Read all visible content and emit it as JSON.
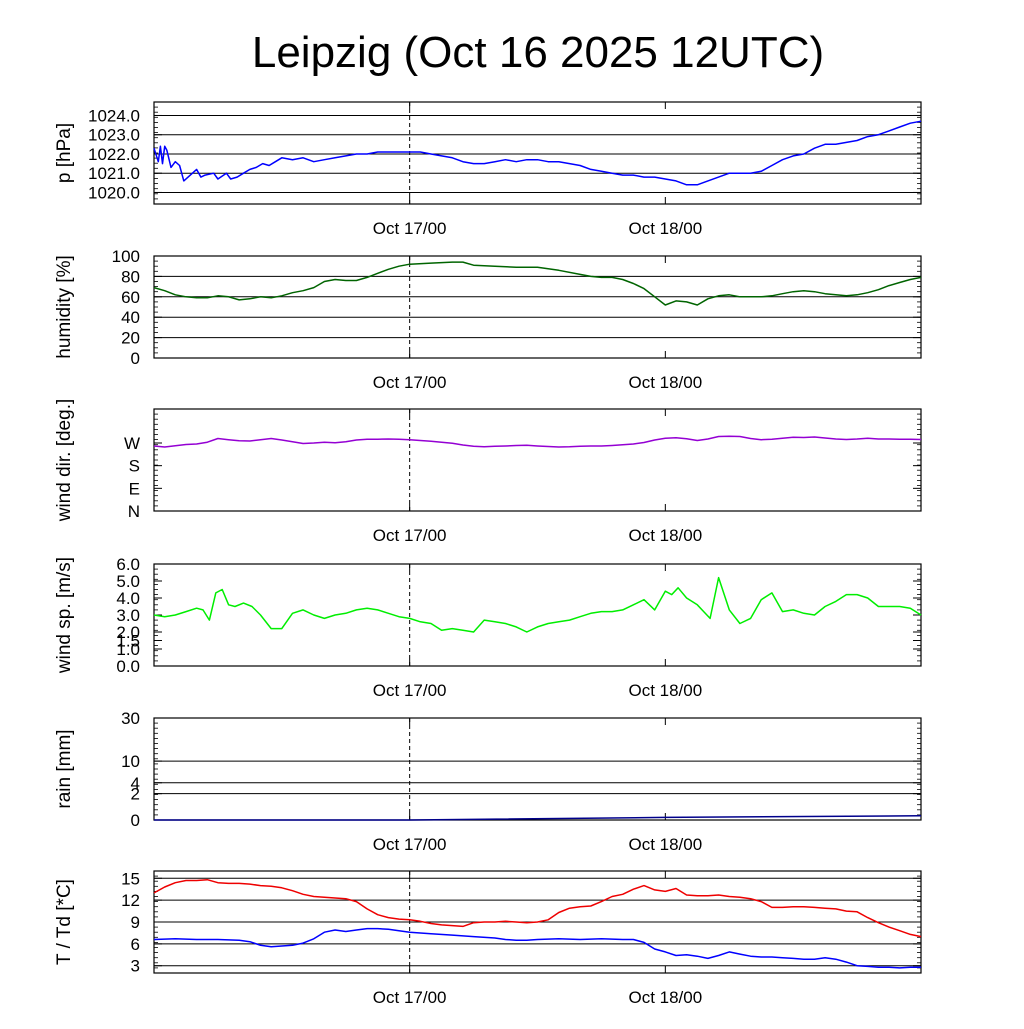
{
  "title": "Leipzig (Oct 16 2025 12UTC)",
  "chart_data": [
    {
      "id": "pressure",
      "type": "line",
      "ylabel": "p [hPa]",
      "ylim": [
        1019.4,
        1024.7
      ],
      "yticks": [
        1020.0,
        1021.0,
        1022.0,
        1023.0,
        1024.0
      ],
      "ytick_labels": [
        "1020.0",
        "1021.0",
        "1022.0",
        "1023.0",
        "1024.0"
      ],
      "xlim": [
        0,
        36
      ],
      "xticks": [
        12,
        24
      ],
      "xtick_labels": [
        "Oct 17/00",
        "Oct 18/00"
      ],
      "grid": true,
      "vline_x": 12,
      "series": [
        {
          "color": "#0000ff",
          "x": [
            0,
            0.2,
            0.3,
            0.4,
            0.5,
            0.6,
            0.8,
            1.0,
            1.2,
            1.4,
            1.6,
            2.0,
            2.2,
            2.4,
            2.8,
            3.0,
            3.4,
            3.6,
            3.9,
            4.2,
            4.5,
            4.8,
            5.1,
            5.4,
            5.7,
            6.0,
            6.5,
            7.0,
            7.5,
            8.0,
            8.5,
            9.0,
            9.5,
            10.0,
            10.5,
            11.0,
            11.5,
            12.0,
            12.5,
            13.0,
            13.5,
            14.0,
            14.5,
            15.0,
            15.5,
            16.0,
            16.5,
            17.0,
            17.5,
            18.0,
            18.5,
            19.0,
            19.5,
            20.0,
            20.5,
            21.0,
            21.5,
            22.0,
            22.5,
            23.0,
            23.5,
            24.0,
            24.5,
            25.0,
            25.5,
            26.0,
            26.5,
            27.0,
            27.5,
            28.0,
            28.5,
            29.0,
            29.5,
            30.0,
            30.5,
            31.0,
            31.5,
            32.0,
            32.5,
            33.0,
            33.5,
            34.0,
            34.5,
            35.0,
            35.5,
            36.0
          ],
          "y": [
            1022.3,
            1021.6,
            1022.4,
            1021.5,
            1022.4,
            1022.2,
            1021.3,
            1021.6,
            1021.4,
            1020.6,
            1020.8,
            1021.2,
            1020.8,
            1020.9,
            1021.0,
            1020.7,
            1021.0,
            1020.7,
            1020.8,
            1021.0,
            1021.2,
            1021.3,
            1021.5,
            1021.4,
            1021.6,
            1021.8,
            1021.7,
            1021.8,
            1021.6,
            1021.7,
            1021.8,
            1021.9,
            1022.0,
            1022.0,
            1022.1,
            1022.1,
            1022.1,
            1022.1,
            1022.1,
            1022.0,
            1021.9,
            1021.8,
            1021.6,
            1021.5,
            1021.5,
            1021.6,
            1021.7,
            1021.6,
            1021.7,
            1021.7,
            1021.6,
            1021.6,
            1021.5,
            1021.4,
            1021.2,
            1021.1,
            1021.0,
            1020.9,
            1020.9,
            1020.8,
            1020.8,
            1020.7,
            1020.6,
            1020.4,
            1020.4,
            1020.6,
            1020.8,
            1021.0,
            1021.0,
            1021.0,
            1021.1,
            1021.4,
            1021.7,
            1021.9,
            1022.0,
            1022.3,
            1022.5,
            1022.5,
            1022.6,
            1022.7,
            1022.9,
            1023.0,
            1023.2,
            1023.4,
            1023.6,
            1023.7
          ]
        }
      ]
    },
    {
      "id": "humidity",
      "type": "line",
      "ylabel": "humidity [%]",
      "ylim": [
        0,
        100
      ],
      "yticks": [
        0,
        20,
        40,
        60,
        80,
        100
      ],
      "ytick_labels": [
        "0",
        "20",
        "40",
        "60",
        "80",
        "100"
      ],
      "xlim": [
        0,
        36
      ],
      "xticks": [
        12,
        24
      ],
      "xtick_labels": [
        "Oct 17/00",
        "Oct 18/00"
      ],
      "grid": true,
      "vline_x": 12,
      "series": [
        {
          "color": "#006400",
          "x": [
            0,
            0.5,
            1,
            1.5,
            2,
            2.5,
            3,
            3.5,
            4,
            4.5,
            5,
            5.5,
            6,
            6.5,
            7,
            7.5,
            8,
            8.5,
            9,
            9.5,
            10,
            10.5,
            11,
            11.5,
            12,
            13,
            14,
            14.5,
            15,
            16,
            17,
            18,
            19,
            20,
            20.5,
            21,
            21.5,
            22,
            22.5,
            23,
            23.5,
            24,
            24.5,
            25,
            25.5,
            26,
            26.5,
            27,
            27.5,
            28,
            28.5,
            29,
            29.5,
            30,
            30.5,
            31,
            31.5,
            32,
            32.5,
            33,
            33.5,
            34,
            34.5,
            35,
            35.5,
            36
          ],
          "y": [
            69,
            66,
            62,
            60,
            59,
            59,
            61,
            60,
            57,
            58,
            60,
            59,
            61,
            64,
            66,
            69,
            75,
            77,
            76,
            76,
            79,
            83,
            87,
            90,
            92,
            93,
            94,
            94,
            91,
            90,
            89,
            89,
            86,
            82,
            80,
            79,
            79,
            77,
            73,
            68,
            60,
            52,
            56,
            55,
            52,
            58,
            61,
            62,
            60,
            60,
            60,
            61,
            63,
            65,
            66,
            65,
            63,
            62,
            61,
            62,
            64,
            67,
            71,
            74,
            77,
            79
          ]
        }
      ]
    },
    {
      "id": "winddir",
      "type": "line",
      "ylabel": "wind dir. [deg.]",
      "ylim": [
        0,
        405
      ],
      "yticks": [
        0,
        90,
        180,
        270
      ],
      "ytick_labels": [
        "N",
        "E",
        "S",
        "W"
      ],
      "xlim": [
        0,
        36
      ],
      "xticks": [
        12,
        24
      ],
      "xtick_labels": [
        "Oct 17/00",
        "Oct 18/00"
      ],
      "grid": false,
      "vline_x": 12,
      "series": [
        {
          "color": "#9400d3",
          "x": [
            0,
            0.5,
            1,
            1.5,
            2,
            2.5,
            3,
            3.5,
            4,
            4.5,
            5,
            5.5,
            6,
            6.5,
            7,
            7.5,
            8,
            8.5,
            9,
            9.5,
            10,
            10.5,
            11,
            11.5,
            12,
            12.5,
            13,
            13.5,
            14,
            14.5,
            15,
            15.5,
            16,
            16.5,
            17,
            17.5,
            18,
            18.5,
            19,
            19.5,
            20,
            20.5,
            21,
            21.5,
            22,
            22.5,
            23,
            23.5,
            24,
            24.5,
            25,
            25.5,
            26,
            26.5,
            27,
            27.5,
            28,
            28.5,
            29,
            29.5,
            30,
            30.5,
            31,
            31.5,
            32,
            32.5,
            33,
            33.5,
            34,
            34.5,
            35,
            35.5,
            36
          ],
          "y": [
            258,
            254,
            259,
            264,
            266,
            273,
            288,
            283,
            279,
            278,
            283,
            288,
            282,
            275,
            268,
            270,
            273,
            271,
            275,
            282,
            285,
            285,
            286,
            285,
            283,
            280,
            277,
            273,
            269,
            262,
            257,
            255,
            257,
            258,
            260,
            261,
            258,
            256,
            254,
            255,
            257,
            258,
            258,
            260,
            263,
            266,
            272,
            282,
            289,
            291,
            287,
            280,
            286,
            296,
            297,
            296,
            288,
            283,
            285,
            289,
            293,
            292,
            294,
            290,
            286,
            284,
            286,
            289,
            286,
            286,
            285,
            285,
            284
          ]
        }
      ]
    },
    {
      "id": "windspeed",
      "type": "line",
      "ylabel": "wind sp. [m/s]",
      "ylim": [
        0,
        6
      ],
      "yticks": [
        0,
        1,
        1.5,
        2,
        3,
        4,
        5,
        6
      ],
      "ytick_labels": [
        "0.0",
        "1.0",
        "1.5",
        "2.0",
        "3.0",
        "4.0",
        "5.0",
        "6.0"
      ],
      "xlim": [
        0,
        36
      ],
      "xticks": [
        12,
        24
      ],
      "xtick_labels": [
        "Oct 17/00",
        "Oct 18/00"
      ],
      "grid": false,
      "vline_x": 12,
      "series": [
        {
          "color": "#00ee00",
          "x": [
            0,
            0.5,
            1,
            1.5,
            2,
            2.3,
            2.6,
            2.9,
            3.2,
            3.5,
            3.8,
            4.2,
            4.6,
            5.0,
            5.5,
            6.0,
            6.5,
            7.0,
            7.5,
            8.0,
            8.5,
            9.0,
            9.5,
            10.0,
            10.5,
            11.0,
            11.5,
            12.0,
            12.5,
            13.0,
            13.5,
            14.0,
            14.5,
            15.0,
            15.5,
            16.0,
            16.5,
            17.0,
            17.5,
            18.0,
            18.5,
            19.0,
            19.5,
            20.0,
            20.5,
            21.0,
            21.5,
            22.0,
            22.5,
            23.0,
            23.5,
            24.0,
            24.3,
            24.6,
            25.0,
            25.5,
            25.8,
            26.1,
            26.5,
            27.0,
            27.5,
            28.0,
            28.5,
            29.0,
            29.5,
            30.0,
            30.5,
            31.0,
            31.5,
            32.0,
            32.5,
            33.0,
            33.5,
            34.0,
            34.5,
            35.0,
            35.5,
            36.0
          ],
          "y": [
            3.0,
            2.9,
            3.0,
            3.2,
            3.4,
            3.3,
            2.7,
            4.3,
            4.5,
            3.6,
            3.5,
            3.7,
            3.5,
            3.0,
            2.2,
            2.2,
            3.1,
            3.3,
            3.0,
            2.8,
            3.0,
            3.1,
            3.3,
            3.4,
            3.3,
            3.1,
            2.9,
            2.8,
            2.6,
            2.5,
            2.1,
            2.2,
            2.1,
            2.0,
            2.7,
            2.6,
            2.5,
            2.3,
            2.0,
            2.3,
            2.5,
            2.6,
            2.7,
            2.9,
            3.1,
            3.2,
            3.2,
            3.3,
            3.6,
            3.9,
            3.3,
            4.4,
            4.2,
            4.6,
            4.0,
            3.6,
            3.2,
            2.8,
            5.2,
            3.3,
            2.5,
            2.8,
            3.9,
            4.3,
            3.2,
            3.3,
            3.1,
            3.0,
            3.5,
            3.8,
            4.2,
            4.2,
            4.0,
            3.5,
            3.5,
            3.5,
            3.4,
            3.0
          ]
        }
      ]
    },
    {
      "id": "rain",
      "type": "line",
      "ylabel": "rain [mm]",
      "ylim": [
        0,
        30
      ],
      "yticks": [
        0,
        2,
        4,
        10,
        30
      ],
      "ytick_labels": [
        "0",
        "2",
        "4",
        "10",
        "30"
      ],
      "xlim": [
        0,
        36
      ],
      "xticks": [
        12,
        24
      ],
      "xtick_labels": [
        "Oct 17/00",
        "Oct 18/00"
      ],
      "grid": true,
      "vline_x": 12,
      "series": [
        {
          "color": "#00008b",
          "x": [
            0,
            12,
            24,
            36
          ],
          "y": [
            0,
            0,
            0.02,
            0.05
          ]
        }
      ]
    },
    {
      "id": "temperature",
      "type": "line",
      "ylabel": "T / Td [*C]",
      "ylim": [
        2,
        16
      ],
      "yticks": [
        3,
        6,
        9,
        12,
        15
      ],
      "ytick_labels": [
        "3",
        "6",
        "9",
        "12",
        "15"
      ],
      "xlim": [
        0,
        36
      ],
      "xticks": [
        12,
        24
      ],
      "xtick_labels": [
        "Oct 17/00",
        "Oct 18/00"
      ],
      "grid": true,
      "vline_x": 12,
      "series": [
        {
          "color": "#ee0000",
          "x": [
            0,
            0.5,
            1,
            1.5,
            2,
            2.5,
            3,
            3.5,
            4,
            4.5,
            5,
            5.5,
            6,
            6.5,
            7,
            7.5,
            8,
            8.5,
            9,
            9.5,
            10,
            10.5,
            11,
            11.5,
            12,
            12.5,
            13,
            13.5,
            14,
            14.5,
            15,
            15.5,
            16,
            16.5,
            17,
            17.5,
            18,
            18.5,
            19,
            19.5,
            20,
            20.5,
            21,
            21.5,
            22,
            22.5,
            23,
            23.5,
            24,
            24.5,
            25,
            25.5,
            26,
            26.5,
            27,
            27.5,
            28,
            28.5,
            29,
            29.5,
            30,
            30.5,
            31,
            31.5,
            32,
            32.5,
            33,
            33.5,
            34,
            34.5,
            35,
            35.5,
            36
          ],
          "y": [
            13.0,
            13.8,
            14.4,
            14.7,
            14.7,
            14.8,
            14.4,
            14.3,
            14.3,
            14.2,
            14.0,
            13.9,
            13.7,
            13.3,
            12.8,
            12.5,
            12.4,
            12.3,
            12.2,
            11.8,
            10.8,
            10.0,
            9.6,
            9.4,
            9.3,
            9.1,
            8.8,
            8.6,
            8.5,
            8.4,
            8.9,
            9.0,
            9.0,
            9.1,
            9.0,
            8.9,
            9.0,
            9.3,
            10.3,
            10.9,
            11.1,
            11.2,
            11.8,
            12.5,
            12.8,
            13.5,
            14.0,
            13.4,
            13.2,
            13.6,
            12.7,
            12.6,
            12.6,
            12.7,
            12.5,
            12.4,
            12.2,
            11.8,
            11.0,
            11.0,
            11.1,
            11.1,
            11.0,
            10.9,
            10.8,
            10.5,
            10.4,
            9.6,
            8.9,
            8.3,
            7.8,
            7.3,
            7.0
          ]
        },
        {
          "color": "#0000ff",
          "x": [
            0,
            1,
            2,
            3,
            4,
            4.5,
            5,
            5.5,
            6,
            6.5,
            7,
            7.5,
            8,
            8.5,
            9,
            9.5,
            10,
            10.5,
            11,
            11.5,
            12,
            13,
            14,
            15,
            16,
            16.5,
            17,
            17.5,
            18,
            19,
            20,
            21,
            22,
            22.5,
            23,
            23.5,
            24,
            24.5,
            25,
            25.5,
            26,
            26.5,
            27,
            27.5,
            28,
            28.5,
            29,
            29.5,
            30,
            30.5,
            31,
            31.5,
            32,
            32.5,
            33,
            33.5,
            34,
            34.5,
            35,
            35.5,
            36
          ],
          "y": [
            6.6,
            6.7,
            6.6,
            6.6,
            6.5,
            6.3,
            5.8,
            5.6,
            5.7,
            5.8,
            6.1,
            6.7,
            7.6,
            7.9,
            7.7,
            7.9,
            8.1,
            8.1,
            8.0,
            7.8,
            7.6,
            7.4,
            7.2,
            7.0,
            6.8,
            6.6,
            6.5,
            6.5,
            6.6,
            6.7,
            6.6,
            6.7,
            6.6,
            6.6,
            6.2,
            5.3,
            4.9,
            4.4,
            4.5,
            4.3,
            4.0,
            4.4,
            4.9,
            4.6,
            4.3,
            4.2,
            4.2,
            4.1,
            4.0,
            3.9,
            3.9,
            4.1,
            3.9,
            3.5,
            3.0,
            2.9,
            2.8,
            2.8,
            2.7,
            2.8,
            2.8
          ]
        }
      ]
    }
  ]
}
